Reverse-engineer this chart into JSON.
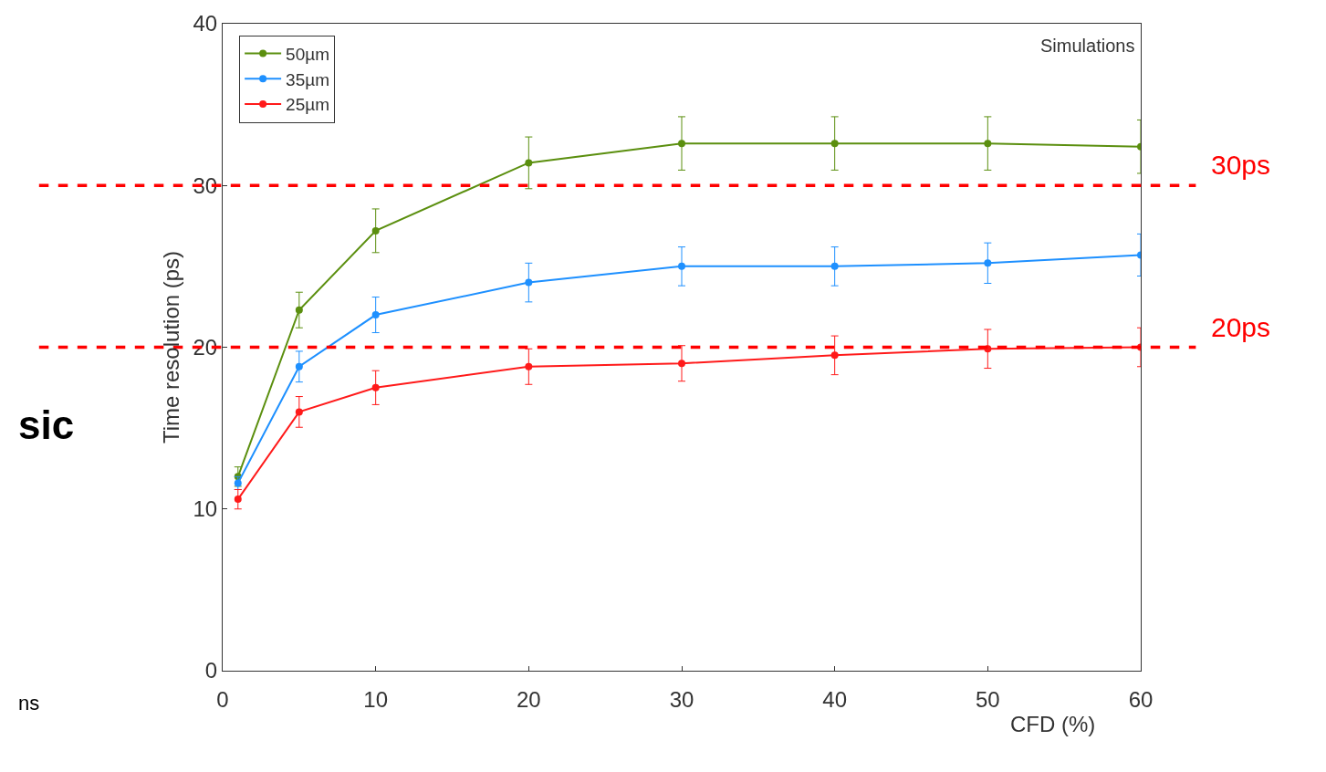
{
  "chart_data": {
    "type": "line",
    "xlabel": "CFD (%)",
    "ylabel": "Time resolution (ps)",
    "x": [
      1,
      5,
      10,
      20,
      30,
      40,
      50,
      60
    ],
    "xlim": [
      0,
      60
    ],
    "xticks": [
      0,
      10,
      20,
      30,
      40,
      50,
      60
    ],
    "ylim": [
      0,
      40
    ],
    "yticks": [
      0,
      10,
      20,
      30,
      40
    ],
    "series": [
      {
        "name": "50µm",
        "color": "#5b8f0f",
        "values": [
          12.0,
          22.3,
          27.2,
          31.4,
          32.6,
          32.6,
          32.6,
          32.4
        ],
        "errors": [
          0.6,
          1.1,
          1.35,
          1.6,
          1.65,
          1.65,
          1.65,
          1.65
        ]
      },
      {
        "name": "35µm",
        "color": "#1e90ff",
        "values": [
          11.6,
          18.8,
          22.0,
          24.0,
          25.0,
          25.0,
          25.2,
          25.7
        ],
        "errors": [
          0.4,
          0.95,
          1.1,
          1.2,
          1.2,
          1.2,
          1.25,
          1.3
        ]
      },
      {
        "name": "25µm",
        "color": "#ff1a1a",
        "values": [
          10.6,
          16.0,
          17.5,
          18.8,
          19.0,
          19.5,
          19.9,
          20.0
        ],
        "errors": [
          0.6,
          0.95,
          1.05,
          1.1,
          1.1,
          1.2,
          1.2,
          1.2
        ]
      }
    ],
    "ref_lines": [
      {
        "axis": "y",
        "value": 30,
        "label": "30ps",
        "color": "#ff0000",
        "line_style": "dashed"
      },
      {
        "axis": "y",
        "value": 20,
        "label": "20ps",
        "color": "#ff0000",
        "line_style": "dashed"
      }
    ],
    "annotations": [
      "Simulations",
      "sic",
      "ns"
    ],
    "legend": "top left",
    "marker": "circle",
    "line_style": "solid"
  }
}
